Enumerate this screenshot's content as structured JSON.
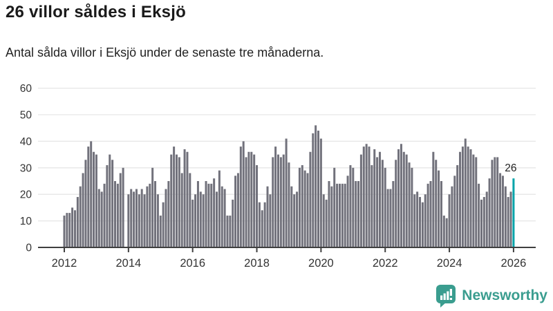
{
  "header": {
    "title": "26 villor såldes i Eksjö",
    "subtitle": "Antal sålda villor i Eksjö under de senaste tre månaderna."
  },
  "chart_data": {
    "type": "bar",
    "title": "26 villor såldes i Eksjö",
    "subtitle": "Antal sålda villor i Eksjö under de senaste tre månaderna.",
    "xlabel": "",
    "ylabel": "",
    "ylim": [
      0,
      60
    ],
    "yticks": [
      0,
      10,
      20,
      30,
      40,
      50,
      60
    ],
    "xticks": [
      2012,
      2014,
      2016,
      2018,
      2020,
      2022,
      2024,
      2026
    ],
    "grid": true,
    "legend": "none",
    "start_year": 2012,
    "frequency": "monthly",
    "values": [
      12,
      13,
      13,
      15,
      14,
      19,
      23,
      28,
      33,
      38,
      40,
      36,
      35,
      22,
      21,
      24,
      31,
      35,
      33,
      25,
      24,
      28,
      30,
      0,
      20,
      22,
      21,
      22,
      20,
      22,
      20,
      23,
      24,
      30,
      25,
      20,
      12,
      17,
      22,
      25,
      35,
      38,
      35,
      34,
      28,
      37,
      36,
      28,
      18,
      20,
      25,
      21,
      20,
      25,
      24,
      24,
      26,
      21,
      29,
      23,
      22,
      12,
      12,
      18,
      27,
      28,
      38,
      40,
      34,
      36,
      36,
      35,
      31,
      17,
      14,
      17,
      23,
      20,
      34,
      38,
      35,
      34,
      35,
      41,
      32,
      23,
      20,
      21,
      30,
      31,
      29,
      28,
      36,
      43,
      46,
      44,
      41,
      20,
      18,
      25,
      23,
      30,
      24,
      24,
      24,
      24,
      27,
      31,
      30,
      25,
      25,
      35,
      38,
      39,
      38,
      31,
      37,
      34,
      36,
      33,
      30,
      22,
      22,
      25,
      33,
      37,
      39,
      36,
      35,
      32,
      30,
      20,
      21,
      19,
      17,
      20,
      24,
      25,
      36,
      33,
      29,
      25,
      12,
      11,
      20,
      23,
      27,
      31,
      36,
      38,
      41,
      38,
      37,
      35,
      34,
      24,
      18,
      19,
      21,
      26,
      33,
      34,
      34,
      28,
      27,
      23,
      19,
      21,
      26
    ],
    "highlight": {
      "index": 168,
      "value": 26,
      "label": "26"
    }
  },
  "colors": {
    "bar": "#71717b",
    "highlight": "#00a3a9",
    "grid": "#e6e6e6",
    "axis": "#3f3f3f",
    "tick_label": "#333333",
    "annotation": "#222222",
    "brand": "#3a9d8f"
  },
  "footer": {
    "brand": "Newsworthy"
  }
}
